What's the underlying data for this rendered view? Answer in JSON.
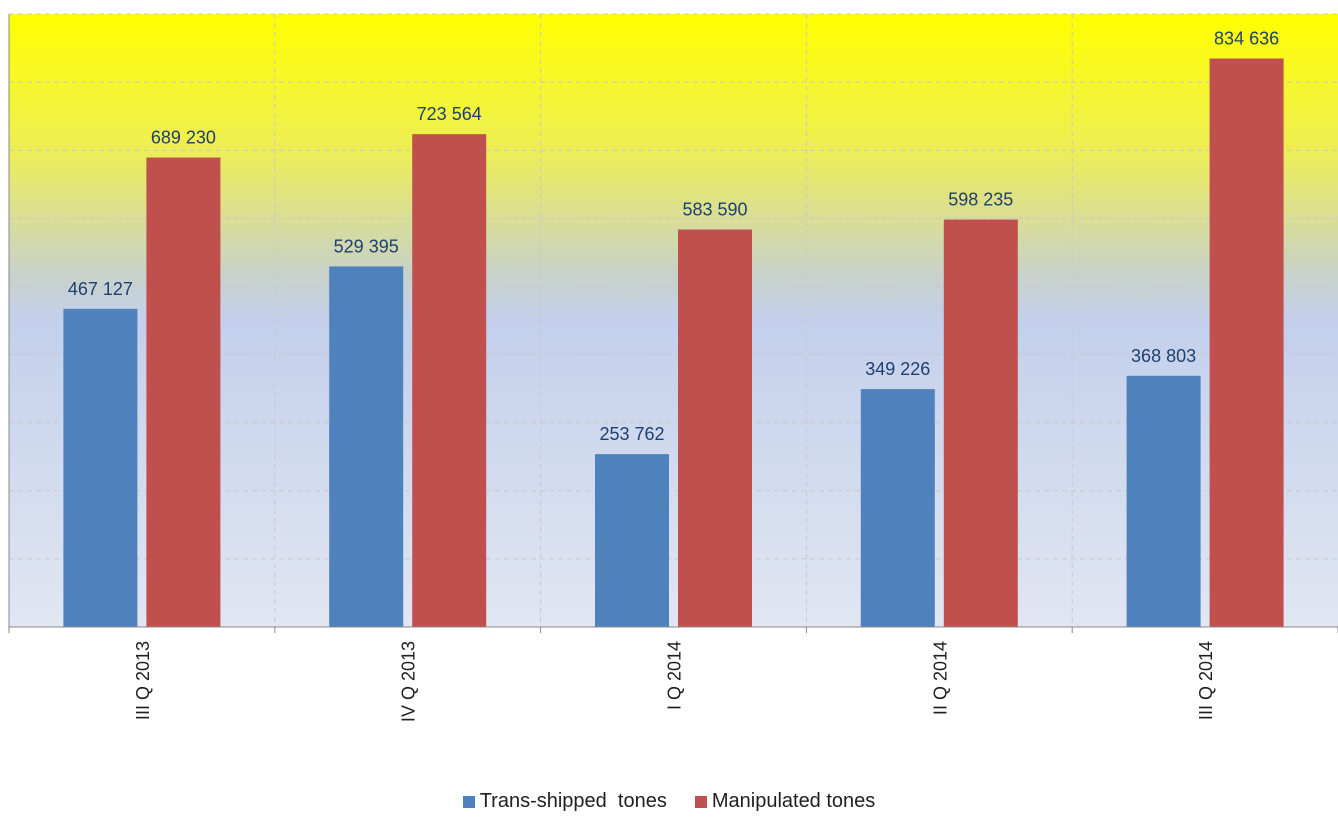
{
  "chart_data": {
    "type": "bar",
    "categories": [
      "III Q 2013",
      "IV Q 2013",
      "I Q 2014",
      "II Q 2014",
      "III Q 2014"
    ],
    "series": [
      {
        "name": "Trans-shipped  tones",
        "color": "#4f81bd",
        "values": [
          467127,
          529395,
          253762,
          349226,
          368803
        ],
        "labels": [
          "467 127",
          "529 395",
          "253 762",
          "349 226",
          "368 803"
        ]
      },
      {
        "name": "Manipulated tones",
        "color": "#c0504d",
        "values": [
          689230,
          723564,
          583590,
          598235,
          834636
        ],
        "labels": [
          "689 230",
          "723 564",
          "583 590",
          "598 235",
          "834 636"
        ]
      }
    ],
    "ylim": [
      0,
      900000
    ],
    "grid": true,
    "legend_position": "bottom",
    "title": "",
    "xlabel": "",
    "ylabel": ""
  }
}
